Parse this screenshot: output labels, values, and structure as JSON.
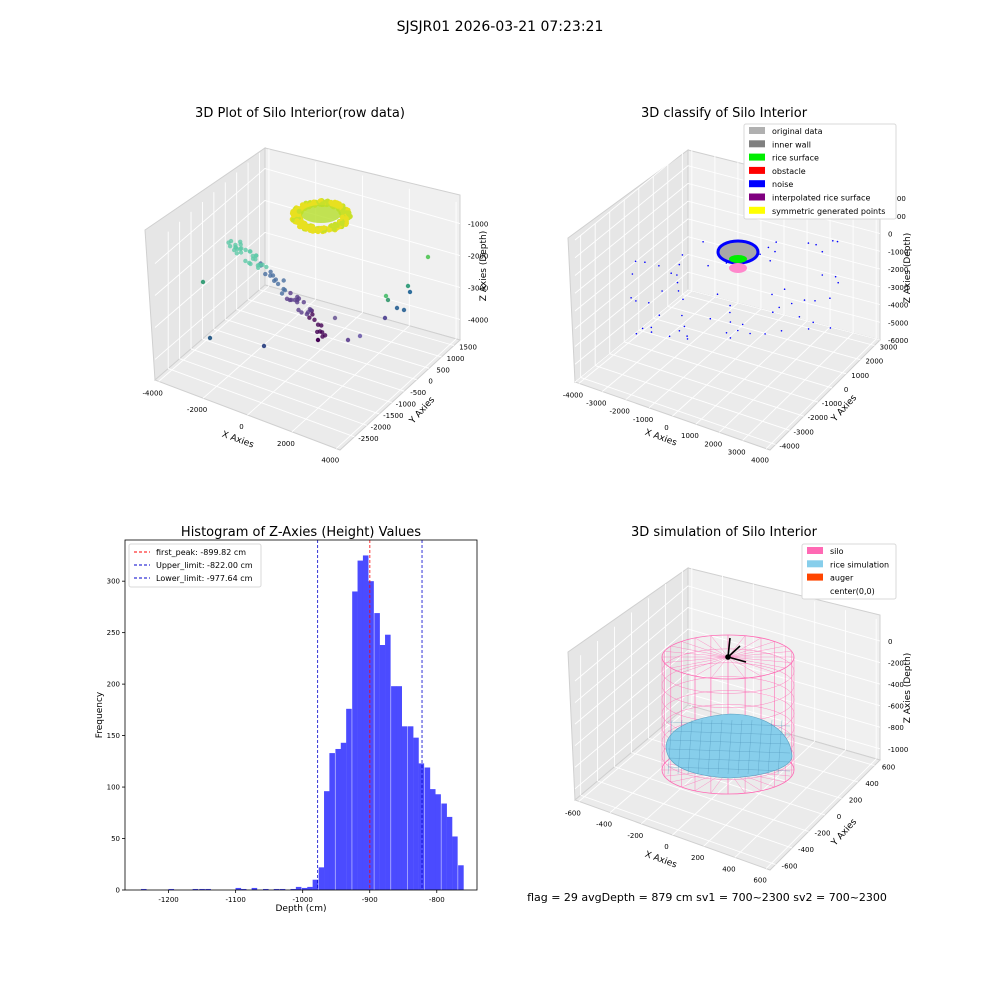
{
  "figure": {
    "suptitle": "SJSJR01 2026-03-21 07:23:21",
    "footer": "flag = 29  avgDepth = 879 cm  sv1 = 700~2300  sv2 = 700~2300"
  },
  "chart_data": [
    {
      "type": "scatter",
      "projection": "3d",
      "title": "3D Plot of Silo Interior(row data)",
      "xlabel": "X Axies",
      "ylabel": "Y Axies",
      "zlabel": "Z Axies (Depth)",
      "xticks": [
        "-4000",
        "-2000",
        "0",
        "2000",
        "4000"
      ],
      "yticks": [
        "-2500",
        "-2000",
        "-1500",
        "-1000",
        "-500",
        "0",
        "500",
        "1000",
        "1500"
      ],
      "zticks": [
        "-1000",
        "-2000",
        "-3000",
        "-4000"
      ],
      "grid": true,
      "colors": {
        "surface": "#e8e020",
        "deep": "#440154",
        "mid": "#3b8bc2",
        "high": "#5ec962"
      }
    },
    {
      "type": "scatter",
      "projection": "3d",
      "title": "3D classify of Silo Interior",
      "xlabel": "X Axies",
      "ylabel": "Y Axies",
      "zlabel": "Z Axies (Depth)",
      "xticks": [
        "-4000",
        "-3000",
        "-2000",
        "-1000",
        "0",
        "1000",
        "2000",
        "3000",
        "4000"
      ],
      "yticks": [
        "-4000",
        "-3000",
        "-2000",
        "-1000",
        "0",
        "1000",
        "2000",
        "3000"
      ],
      "zticks": [
        "2000",
        "1000",
        "0",
        "-1000",
        "-2000",
        "-3000",
        "-4000",
        "-5000",
        "-6000"
      ],
      "grid": true,
      "legend_position": "top-right",
      "legend": [
        {
          "label": "original data",
          "color": "#b0b0b0"
        },
        {
          "label": "inner wall",
          "color": "#808080"
        },
        {
          "label": "rice surface",
          "color": "#00ee00"
        },
        {
          "label": "obstacle",
          "color": "#ff0000"
        },
        {
          "label": "noise",
          "color": "#0000ff"
        },
        {
          "label": "interpolated rice surface",
          "color": "#800080"
        },
        {
          "label": "symmetric generated points",
          "color": "#ffff00"
        }
      ]
    },
    {
      "type": "bar",
      "title": "Histogram of Z-Axies (Height) Values",
      "xlabel": "Depth (cm)",
      "ylabel": "Frequency",
      "xlim": [
        -1265,
        -740
      ],
      "ylim": [
        0,
        340
      ],
      "xticks": [
        -1200,
        -1100,
        -1000,
        -900,
        -800
      ],
      "yticks": [
        0,
        50,
        100,
        150,
        200,
        250,
        300
      ],
      "bar_color": "#4b4bff",
      "bin_width": 8.3,
      "x": [
        -1237,
        -1196,
        -1160,
        -1150,
        -1141,
        -1096,
        -1088,
        -1072,
        -1055,
        -1039,
        -1030,
        -1014,
        -1006,
        -997,
        -989,
        -981,
        -972,
        -964,
        -956,
        -947,
        -939,
        -931,
        -922,
        -914,
        -906,
        -898,
        -889,
        -881,
        -873,
        -864,
        -856,
        -848,
        -839,
        -831,
        -823,
        -814,
        -806,
        -798,
        -789,
        -781,
        -773,
        -764
      ],
      "values": [
        1,
        1,
        1,
        1,
        1,
        2,
        1,
        2,
        1,
        1,
        1,
        1,
        3,
        2,
        3,
        10,
        22,
        96,
        133,
        137,
        143,
        176,
        290,
        320,
        325,
        300,
        269,
        238,
        248,
        198,
        198,
        159,
        159,
        148,
        123,
        119,
        98,
        93,
        84,
        71,
        52,
        24
      ],
      "vlines": [
        {
          "name": "first_peak: -899.82 cm",
          "x": -899.82,
          "color": "#ff0000"
        },
        {
          "name": "Upper_limit: -822.00 cm",
          "x": -822.0,
          "color": "#0000cc"
        },
        {
          "name": "Lower_limit: -977.64 cm",
          "x": -977.64,
          "color": "#0000cc"
        }
      ],
      "legend_position": "top-left"
    },
    {
      "type": "scatter",
      "projection": "3d",
      "title": "3D simulation of Silo Interior",
      "xlabel": "X Axies",
      "ylabel": "Y Axies",
      "zlabel": "Z Axies (Depth)",
      "xticks": [
        "-600",
        "-400",
        "-200",
        "0",
        "200",
        "400",
        "600"
      ],
      "yticks": [
        "-600",
        "-400",
        "-200",
        "0",
        "200",
        "400",
        "600"
      ],
      "zticks": [
        "0",
        "-200",
        "-400",
        "-600",
        "-800",
        "-1000"
      ],
      "grid": true,
      "legend_position": "top-right",
      "legend": [
        {
          "label": "silo",
          "color": "#ff69b4"
        },
        {
          "label": "rice simulation",
          "color": "#87ceeb"
        },
        {
          "label": "auger",
          "color": "#ff4500"
        },
        {
          "label": "center(0,0)",
          "color": "#ffffff"
        }
      ]
    }
  ]
}
